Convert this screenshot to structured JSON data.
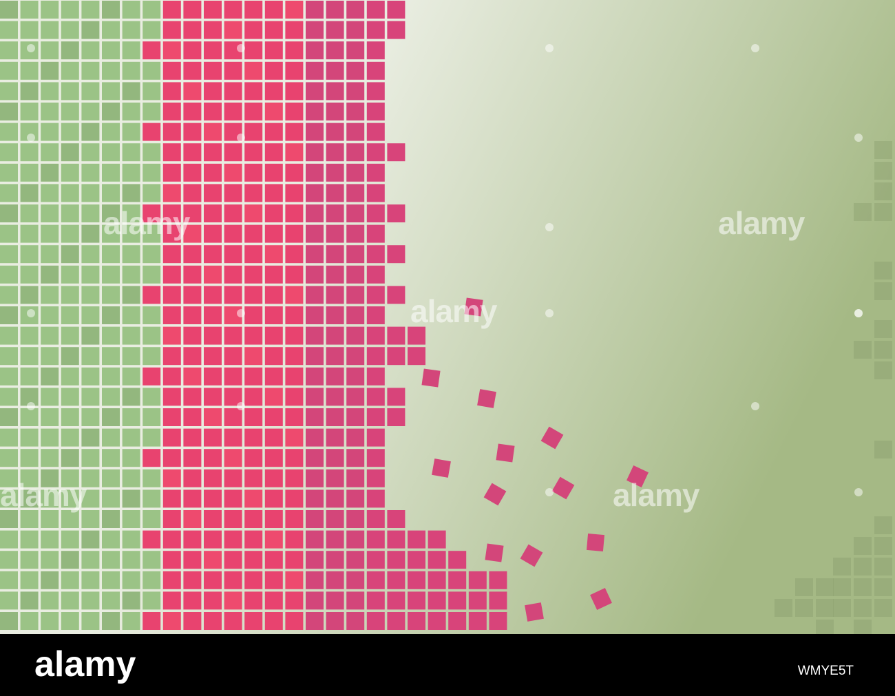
{
  "watermark": "alamy",
  "footer": {
    "logo": "alamy",
    "image_id": "WMYE5T"
  }
}
